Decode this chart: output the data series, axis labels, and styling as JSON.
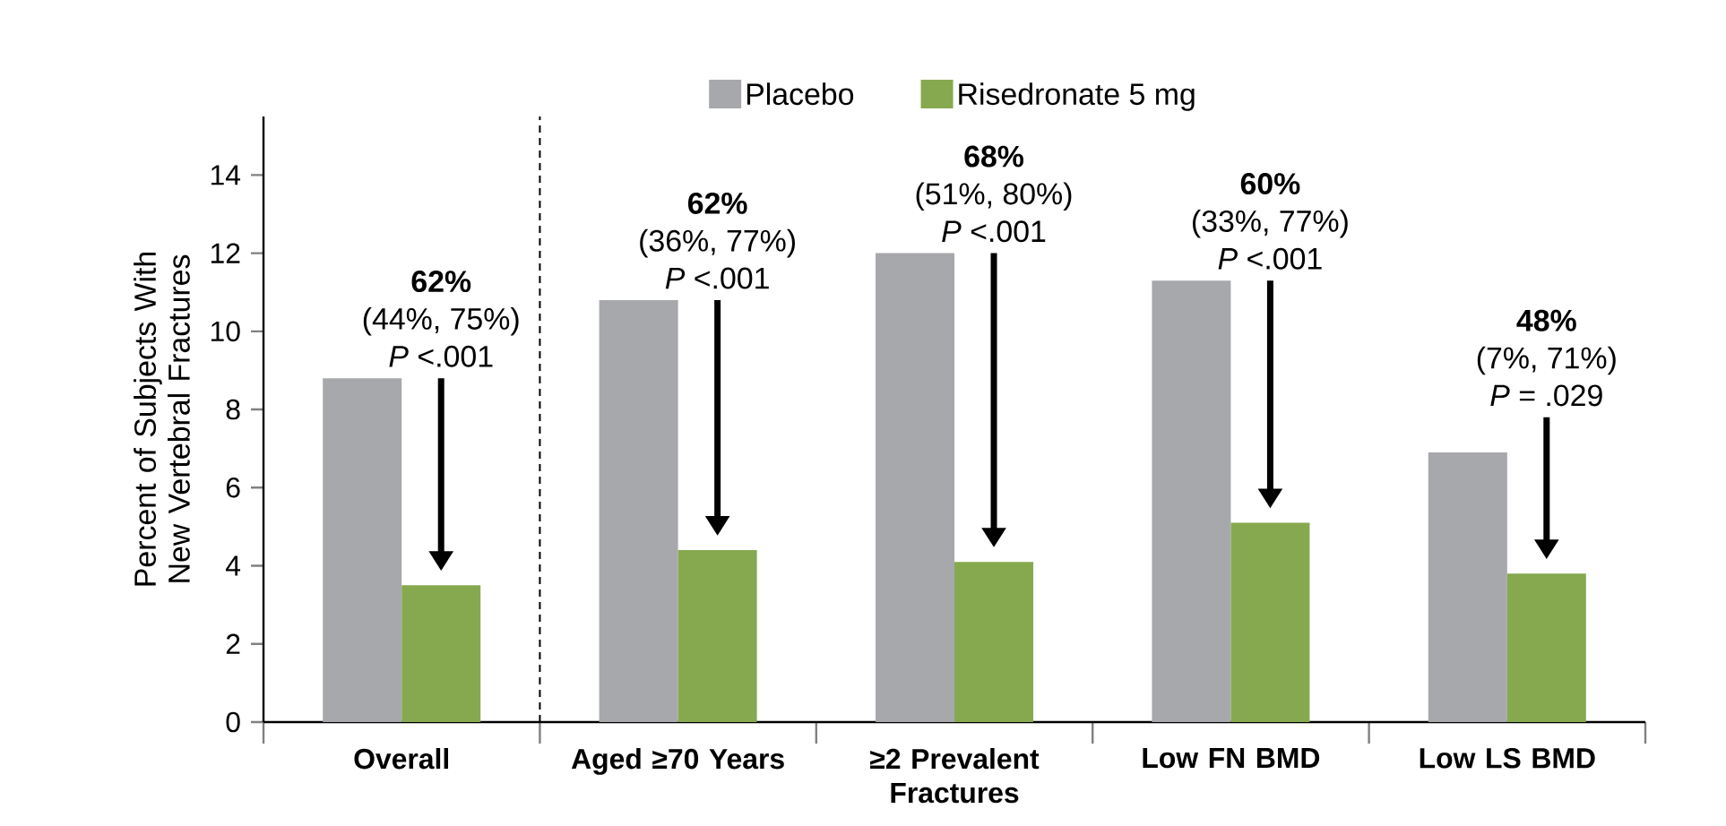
{
  "chart_data": {
    "type": "bar",
    "ylabel": "Percent of Subjects With New Vertebral Fractures",
    "categories": [
      "Overall",
      "Aged ≥70 Years",
      "≥2 Prevalent Fractures",
      "Low FN BMD",
      "Low LS BMD"
    ],
    "series": [
      {
        "name": "Placebo",
        "color": "#a7a8ac",
        "values": [
          8.8,
          10.8,
          12.0,
          11.3,
          6.9
        ]
      },
      {
        "name": "Risedronate 5 mg",
        "color": "#86a94f",
        "values": [
          3.5,
          4.4,
          4.1,
          5.1,
          3.8
        ]
      }
    ],
    "ylim": [
      0,
      15.5
    ],
    "yticks": [
      0,
      2,
      4,
      6,
      8,
      10,
      12,
      14
    ],
    "legend": "top",
    "annotations": [
      "62%",
      "(44%, 75%)",
      "*P* <.001",
      "62%",
      "(36%, 77%)",
      "*P* <.001",
      "68%",
      "(51%, 80%)",
      "*P* <.001",
      "60%",
      "(33%, 77%)",
      "*P* <.001",
      "48%",
      "(7%, 71%)",
      "*P* = .029"
    ]
  }
}
